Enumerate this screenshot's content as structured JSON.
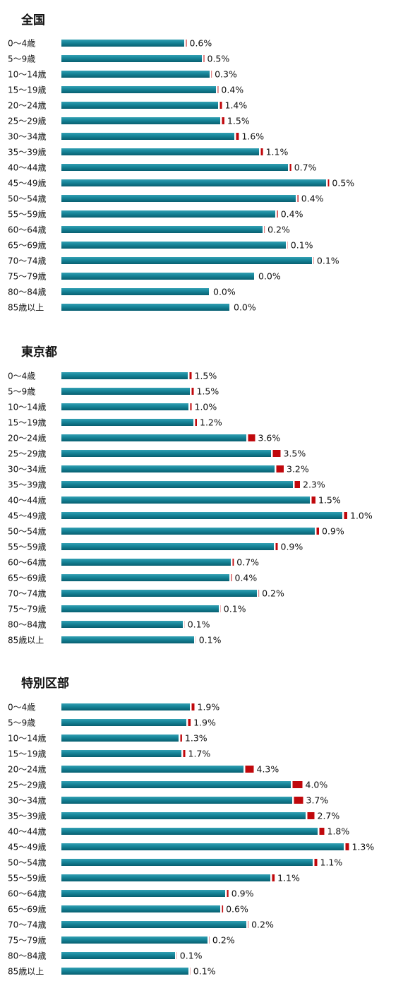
{
  "colors": {
    "bar_top": "#34a0b3",
    "bar_bottom": "#075f70",
    "increment": "#c0080c"
  },
  "chart_data": [
    {
      "type": "bar",
      "title": "全国",
      "categories": [
        "0〜4歳",
        "5〜9歳",
        "10〜14歳",
        "15〜19歳",
        "20〜24歳",
        "25〜29歳",
        "30〜34歳",
        "35〜39歳",
        "40〜44歳",
        "45〜49歳",
        "50〜54歳",
        "55〜59歳",
        "60〜64歳",
        "65〜69歳",
        "70〜74歳",
        "75〜79歳",
        "80〜84歳",
        "85歳以上"
      ],
      "series": [
        {
          "values": [
            174,
            199,
            210,
            219,
            222,
            225,
            245,
            280,
            321,
            375,
            332,
            303,
            285,
            318,
            355,
            273,
            209,
            238
          ]
        },
        {
          "values": [
            1,
            1,
            0.6,
            0.9,
            3,
            3.4,
            3.9,
            3.1,
            2.2,
            1.9,
            1.3,
            1.2,
            0.6,
            0.3,
            0.4,
            0,
            0,
            0
          ]
        }
      ],
      "labels": [
        "0.6%",
        "0.5%",
        "0.3%",
        "0.4%",
        "1.4%",
        "1.5%",
        "1.6%",
        "1.1%",
        "0.7%",
        "0.5%",
        "0.4%",
        "0.4%",
        "0.2%",
        "0.1%",
        "0.1%",
        "0.0%",
        "0.0%",
        "0.0%"
      ]
    },
    {
      "type": "bar",
      "title": "東京都",
      "categories": [
        "0〜4歳",
        "5〜9歳",
        "10〜14歳",
        "15〜19歳",
        "20〜24歳",
        "25〜29歳",
        "30〜34歳",
        "35〜39歳",
        "40〜44歳",
        "45〜49歳",
        "50〜54歳",
        "55〜59歳",
        "60〜64歳",
        "65〜69歳",
        "70〜74歳",
        "75〜79歳",
        "80〜84歳",
        "85歳以上"
      ],
      "series": [
        {
          "values": [
            179,
            182,
            180,
            187,
            262,
            297,
            302,
            328,
            352,
            398,
            359,
            301,
            240,
            238,
            277,
            223,
            172,
            188
          ]
        },
        {
          "values": [
            3,
            3,
            2,
            2.5,
            10,
            11,
            10.5,
            7.5,
            5.5,
            4.5,
            3.5,
            3,
            1.8,
            1,
            0.6,
            0.3,
            0.2,
            0.2
          ]
        }
      ],
      "labels": [
        "1.5%",
        "1.5%",
        "1.0%",
        "1.2%",
        "3.6%",
        "3.5%",
        "3.2%",
        "2.3%",
        "1.5%",
        "1.0%",
        "0.9%",
        "0.9%",
        "0.7%",
        "0.4%",
        "0.2%",
        "0.1%",
        "0.1%",
        "0.1%"
      ]
    },
    {
      "type": "bar",
      "title": "特別区部",
      "categories": [
        "0〜4歳",
        "5〜9歳",
        "10〜14歳",
        "15〜19歳",
        "20〜24歳",
        "25〜29歳",
        "30〜34歳",
        "35〜39歳",
        "40〜44歳",
        "45〜49歳",
        "50〜54歳",
        "55〜59歳",
        "60〜64歳",
        "65〜69歳",
        "70〜74歳",
        "75〜79歳",
        "80〜84歳",
        "85歳以上"
      ],
      "series": [
        {
          "values": [
            182,
            177,
            166,
            170,
            258,
            325,
            327,
            346,
            363,
            400,
            356,
            296,
            232,
            225,
            262,
            207,
            161,
            180
          ]
        },
        {
          "values": [
            4,
            3.6,
            2.4,
            3,
            12,
            14,
            13,
            10,
            7,
            5,
            4,
            3.6,
            2.2,
            1.6,
            0.6,
            0.4,
            0.3,
            0.3
          ]
        }
      ],
      "labels": [
        "1.9%",
        "1.9%",
        "1.3%",
        "1.7%",
        "4.3%",
        "4.0%",
        "3.7%",
        "2.7%",
        "1.8%",
        "1.3%",
        "1.1%",
        "1.1%",
        "0.9%",
        "0.6%",
        "0.2%",
        "0.2%",
        "0.1%",
        "0.1%"
      ]
    }
  ]
}
